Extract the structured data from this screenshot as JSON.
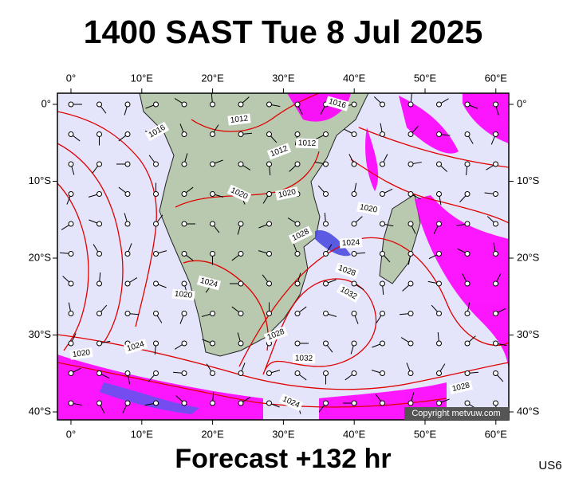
{
  "title": "1400 SAST Tue 8 Jul 2025",
  "subtitle": "Forecast +132 hr",
  "product_code": "US6",
  "copyright": "Copyright metvuw.com",
  "longitude_labels": [
    "0°",
    "10°E",
    "20°E",
    "30°E",
    "40°E",
    "50°E",
    "60°E"
  ],
  "latitude_labels": [
    "0°",
    "10°S",
    "20°S",
    "30°S",
    "40°S"
  ],
  "isobar_labels": [
    "1016",
    "1012",
    "1016",
    "1012",
    "1012",
    "1020",
    "1020",
    "1020",
    "1028",
    "1024",
    "1028",
    "1024",
    "1020",
    "1032",
    "1020",
    "1024",
    "1028",
    "1032",
    "1024",
    "1028"
  ]
}
